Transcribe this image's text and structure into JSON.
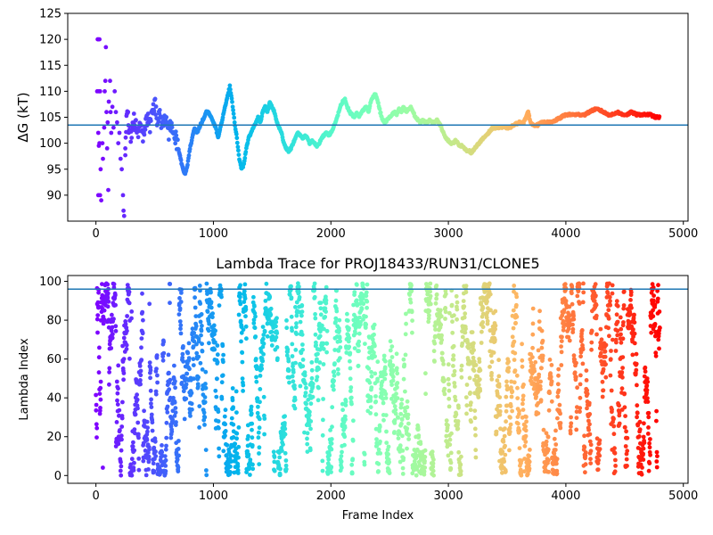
{
  "chart_data": [
    {
      "type": "scatter",
      "title": "",
      "xlabel": "",
      "ylabel": "ΔG (kT)",
      "xlim": [
        -240,
        5040
      ],
      "ylim": [
        85,
        125
      ],
      "xticks": [
        0,
        1000,
        2000,
        3000,
        4000,
        5000
      ],
      "yticks": [
        90,
        95,
        100,
        105,
        110,
        115,
        120,
        125
      ],
      "colormap": "rainbow",
      "color_by": "x",
      "color_range": [
        0,
        4800
      ],
      "grid": false,
      "reference_line": {
        "y": 103.5,
        "color": "#1f77b4"
      },
      "trace_points": [
        [
          15,
          120
        ],
        [
          20,
          120
        ],
        [
          30,
          120
        ],
        [
          25,
          110
        ],
        [
          35,
          110
        ],
        [
          10,
          110
        ],
        [
          20,
          102
        ],
        [
          30,
          100
        ],
        [
          25,
          99.5
        ],
        [
          40,
          95
        ],
        [
          20,
          90
        ],
        [
          35,
          90
        ],
        [
          45,
          89
        ],
        [
          55,
          100
        ],
        [
          60,
          97
        ],
        [
          70,
          103
        ],
        [
          75,
          110
        ],
        [
          85,
          118.5
        ],
        [
          80,
          112
        ],
        [
          90,
          106
        ],
        [
          95,
          99
        ],
        [
          100,
          104
        ],
        [
          105,
          91
        ],
        [
          110,
          108
        ],
        [
          120,
          112
        ],
        [
          125,
          106
        ],
        [
          130,
          102
        ],
        [
          140,
          107
        ],
        [
          150,
          103
        ],
        [
          160,
          110
        ],
        [
          170,
          106
        ],
        [
          180,
          104
        ],
        [
          190,
          100
        ],
        [
          200,
          102
        ],
        [
          210,
          97
        ],
        [
          220,
          95
        ],
        [
          230,
          90
        ],
        [
          235,
          87
        ],
        [
          240,
          86
        ],
        [
          250,
          99
        ],
        [
          260,
          104
        ],
        [
          270,
          107
        ],
        [
          280,
          103
        ],
        [
          300,
          101
        ],
        [
          320,
          105
        ],
        [
          340,
          103
        ],
        [
          360,
          102
        ],
        [
          380,
          104
        ],
        [
          400,
          101
        ],
        [
          420,
          103
        ],
        [
          440,
          105
        ],
        [
          460,
          103
        ],
        [
          480,
          106
        ],
        [
          500,
          108
        ],
        [
          520,
          104
        ],
        [
          540,
          106
        ],
        [
          560,
          103
        ],
        [
          580,
          105
        ],
        [
          600,
          104
        ],
        [
          620,
          102
        ],
        [
          640,
          104
        ],
        [
          660,
          103
        ],
        [
          680,
          101
        ],
        [
          700,
          99
        ],
        [
          720,
          97
        ],
        [
          740,
          95
        ],
        [
          760,
          94
        ],
        [
          780,
          96
        ],
        [
          800,
          99
        ],
        [
          820,
          101
        ],
        [
          840,
          103
        ],
        [
          860,
          102
        ],
        [
          880,
          103
        ],
        [
          900,
          104
        ],
        [
          920,
          105
        ],
        [
          940,
          106
        ],
        [
          960,
          106
        ],
        [
          980,
          105
        ],
        [
          1000,
          104
        ],
        [
          1020,
          103
        ],
        [
          1040,
          101
        ],
        [
          1060,
          103
        ],
        [
          1080,
          105
        ],
        [
          1100,
          107
        ],
        [
          1120,
          109
        ],
        [
          1140,
          111
        ],
        [
          1160,
          108
        ],
        [
          1180,
          104
        ],
        [
          1200,
          101
        ],
        [
          1220,
          97
        ],
        [
          1240,
          95
        ],
        [
          1260,
          96
        ],
        [
          1280,
          99
        ],
        [
          1300,
          101
        ],
        [
          1320,
          102
        ],
        [
          1340,
          103
        ],
        [
          1360,
          104
        ],
        [
          1380,
          105
        ],
        [
          1400,
          104
        ],
        [
          1420,
          106
        ],
        [
          1440,
          107
        ],
        [
          1460,
          106
        ],
        [
          1480,
          108
        ],
        [
          1500,
          107
        ],
        [
          1520,
          106
        ],
        [
          1540,
          104
        ],
        [
          1560,
          103
        ],
        [
          1580,
          102
        ],
        [
          1600,
          100
        ],
        [
          1620,
          99
        ],
        [
          1640,
          98.5
        ],
        [
          1660,
          99
        ],
        [
          1680,
          100
        ],
        [
          1700,
          101
        ],
        [
          1720,
          102
        ],
        [
          1740,
          101.5
        ],
        [
          1760,
          101
        ],
        [
          1780,
          101.5
        ],
        [
          1800,
          101
        ],
        [
          1820,
          100
        ],
        [
          1840,
          100.5
        ],
        [
          1860,
          100
        ],
        [
          1880,
          99.5
        ],
        [
          1900,
          100
        ],
        [
          1920,
          101
        ],
        [
          1940,
          101.5
        ],
        [
          1960,
          102
        ],
        [
          1980,
          101.5
        ],
        [
          2000,
          102
        ],
        [
          2020,
          103
        ],
        [
          2040,
          104
        ],
        [
          2060,
          105.5
        ],
        [
          2080,
          107
        ],
        [
          2100,
          108
        ],
        [
          2120,
          108.5
        ],
        [
          2140,
          107
        ],
        [
          2160,
          106
        ],
        [
          2180,
          105.5
        ],
        [
          2200,
          105
        ],
        [
          2220,
          106
        ],
        [
          2240,
          105
        ],
        [
          2260,
          106
        ],
        [
          2280,
          106.5
        ],
        [
          2300,
          107
        ],
        [
          2320,
          106
        ],
        [
          2340,
          108
        ],
        [
          2360,
          109
        ],
        [
          2380,
          109.5
        ],
        [
          2400,
          108
        ],
        [
          2420,
          106
        ],
        [
          2440,
          104.5
        ],
        [
          2460,
          104
        ],
        [
          2480,
          104.5
        ],
        [
          2500,
          105
        ],
        [
          2520,
          105.5
        ],
        [
          2540,
          106
        ],
        [
          2560,
          105.5
        ],
        [
          2580,
          106.5
        ],
        [
          2600,
          106
        ],
        [
          2620,
          107
        ],
        [
          2640,
          106
        ],
        [
          2660,
          106.5
        ],
        [
          2680,
          107
        ],
        [
          2700,
          106
        ],
        [
          2720,
          105
        ],
        [
          2740,
          104.5
        ],
        [
          2760,
          104
        ],
        [
          2780,
          104.5
        ],
        [
          2800,
          104
        ],
        [
          2820,
          104
        ],
        [
          2840,
          104.5
        ],
        [
          2860,
          104
        ],
        [
          2880,
          104
        ],
        [
          2900,
          104.5
        ],
        [
          2920,
          104
        ],
        [
          2940,
          103
        ],
        [
          2960,
          102
        ],
        [
          2980,
          101
        ],
        [
          3000,
          100.5
        ],
        [
          3020,
          100
        ],
        [
          3040,
          100
        ],
        [
          3060,
          100.5
        ],
        [
          3080,
          100
        ],
        [
          3100,
          99.5
        ],
        [
          3120,
          99.5
        ],
        [
          3140,
          99
        ],
        [
          3160,
          98.5
        ],
        [
          3180,
          98.5
        ],
        [
          3200,
          98
        ],
        [
          3220,
          99
        ],
        [
          3240,
          99.5
        ],
        [
          3260,
          100
        ],
        [
          3280,
          100.5
        ],
        [
          3300,
          101
        ],
        [
          3320,
          101.5
        ],
        [
          3340,
          102
        ],
        [
          3360,
          102.5
        ],
        [
          3380,
          103
        ],
        [
          3400,
          103
        ],
        [
          3440,
          103
        ],
        [
          3480,
          103
        ],
        [
          3520,
          103
        ],
        [
          3560,
          103.5
        ],
        [
          3600,
          104
        ],
        [
          3640,
          104
        ],
        [
          3660,
          105
        ],
        [
          3680,
          106
        ],
        [
          3700,
          104
        ],
        [
          3720,
          103.5
        ],
        [
          3760,
          103.5
        ],
        [
          3800,
          104
        ],
        [
          3840,
          104
        ],
        [
          3880,
          104
        ],
        [
          3920,
          104.5
        ],
        [
          3960,
          105
        ],
        [
          4000,
          105.5
        ],
        [
          4040,
          105.5
        ],
        [
          4080,
          105.5
        ],
        [
          4120,
          105.5
        ],
        [
          4160,
          105.5
        ],
        [
          4200,
          106
        ],
        [
          4240,
          106.5
        ],
        [
          4280,
          106.5
        ],
        [
          4320,
          106
        ],
        [
          4360,
          105.5
        ],
        [
          4400,
          105.5
        ],
        [
          4440,
          106
        ],
        [
          4480,
          105.5
        ],
        [
          4520,
          105.5
        ],
        [
          4560,
          106
        ],
        [
          4600,
          105.5
        ],
        [
          4640,
          105.5
        ],
        [
          4680,
          105.5
        ],
        [
          4720,
          105.5
        ],
        [
          4760,
          105
        ],
        [
          4800,
          105
        ]
      ]
    },
    {
      "type": "scatter",
      "title": "Lambda Trace for PROJ18433/RUN31/CLONE5",
      "xlabel": "Frame Index",
      "ylabel": "Lambda Index",
      "xlim": [
        -240,
        5040
      ],
      "ylim": [
        -4,
        103
      ],
      "xticks": [
        0,
        1000,
        2000,
        3000,
        4000,
        5000
      ],
      "yticks": [
        0,
        20,
        40,
        60,
        80,
        100
      ],
      "colormap": "rainbow",
      "color_by": "x",
      "color_range": [
        0,
        4800
      ],
      "grid": false,
      "reference_line": {
        "y": 96,
        "color": "#1f77b4"
      },
      "frame_range": [
        0,
        4800
      ],
      "lambda_range": [
        0,
        99
      ]
    }
  ]
}
